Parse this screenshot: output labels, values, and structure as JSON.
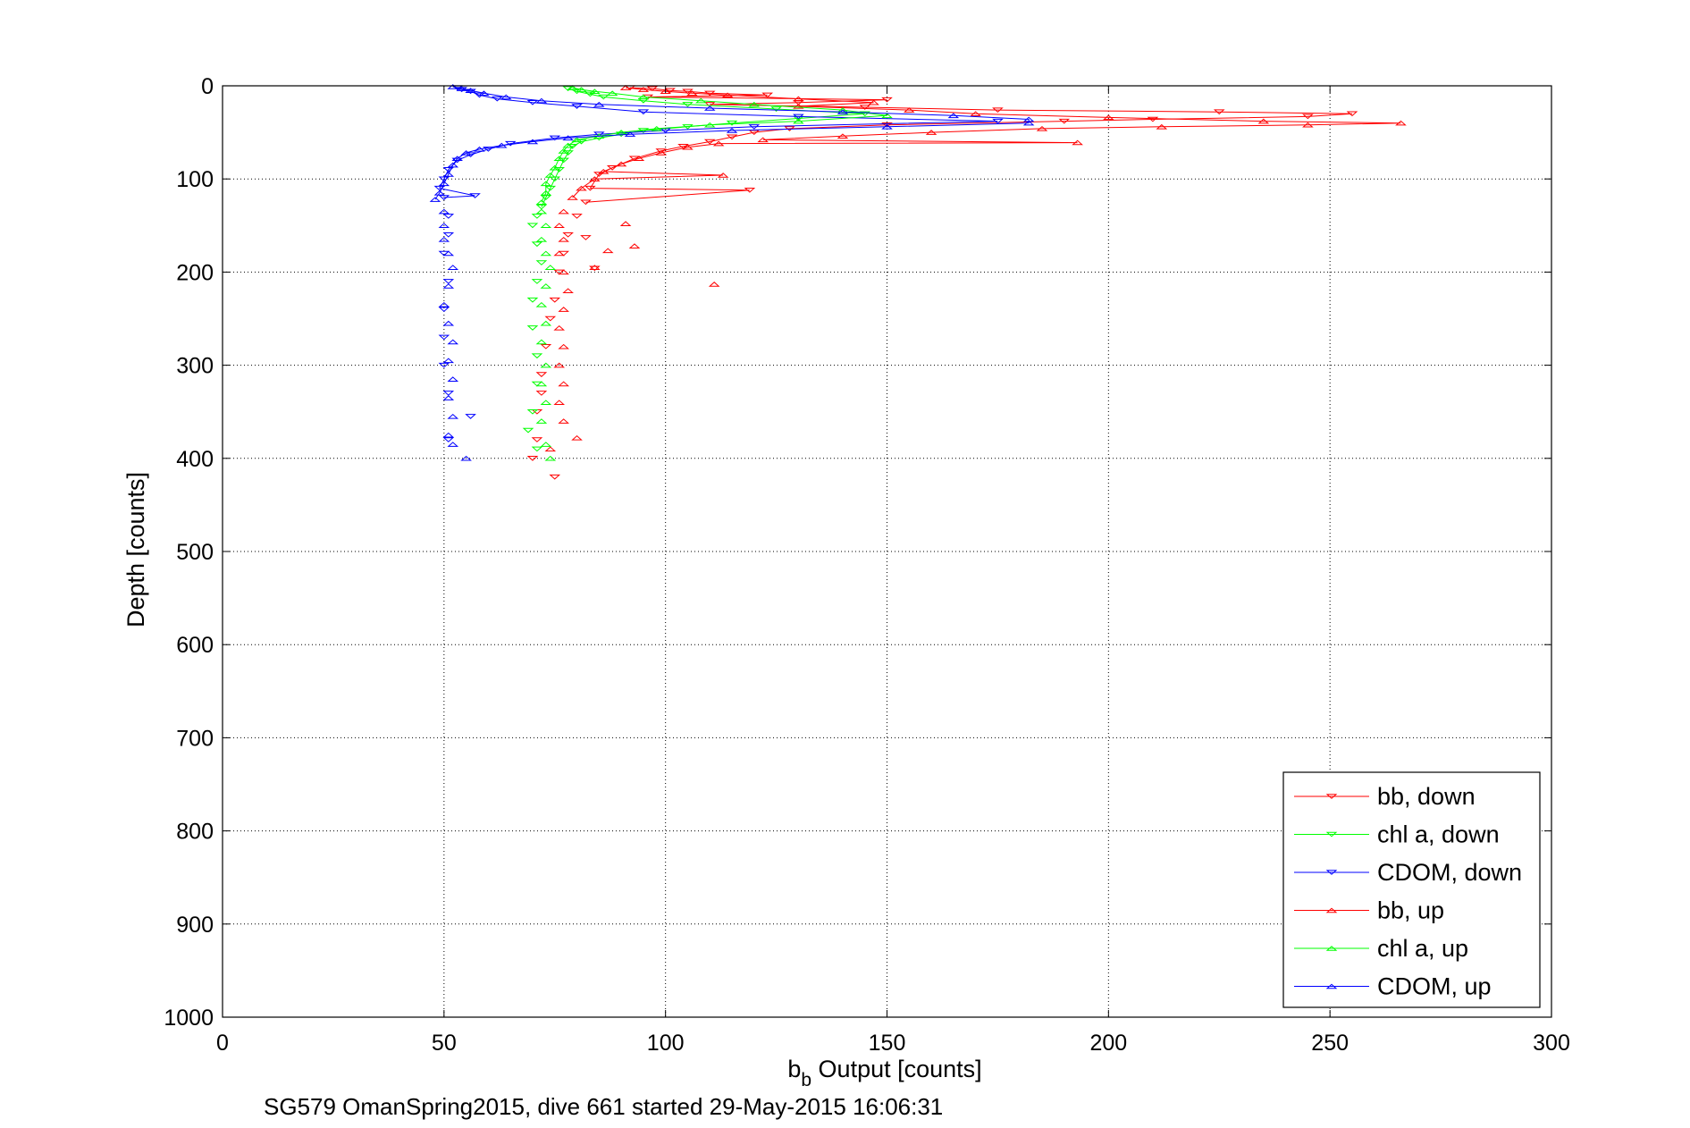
{
  "chart_data": {
    "type": "scatter",
    "title": "",
    "xlabel_main": "b",
    "xlabel_sub": "b",
    "xlabel_rest": " Output [counts]",
    "ylabel": "Depth [counts]",
    "caption": "SG579 OmanSpring2015, dive 661 started 29-May-2015 16:06:31",
    "xlim": [
      0,
      300
    ],
    "ylim": [
      0,
      1000
    ],
    "y_reversed": true,
    "grid": true,
    "legend_position": "bottom-right",
    "x_ticks": [
      "0",
      "50",
      "100",
      "150",
      "200",
      "250",
      "300"
    ],
    "y_ticks": [
      "0",
      "100",
      "200",
      "300",
      "400",
      "500",
      "600",
      "700",
      "800",
      "900",
      "1000"
    ],
    "series": [
      {
        "name": "bb, down",
        "color": "#ff0000",
        "marker": "triangle-down",
        "points": [
          [
            92,
            2
          ],
          [
            97,
            3
          ],
          [
            101,
            5
          ],
          [
            105,
            6
          ],
          [
            110,
            8
          ],
          [
            123,
            10
          ],
          [
            96,
            12
          ],
          [
            150,
            15
          ],
          [
            130,
            18
          ],
          [
            110,
            20
          ],
          [
            145,
            23
          ],
          [
            175,
            26
          ],
          [
            225,
            28
          ],
          [
            255,
            30
          ],
          [
            245,
            33
          ],
          [
            210,
            36
          ],
          [
            190,
            38
          ],
          [
            150,
            42
          ],
          [
            128,
            46
          ],
          [
            120,
            50
          ],
          [
            115,
            55
          ],
          [
            110,
            60
          ],
          [
            104,
            65
          ],
          [
            99,
            70
          ],
          [
            93,
            78
          ],
          [
            88,
            88
          ],
          [
            85,
            95
          ],
          [
            83,
            110
          ],
          [
            82,
            125
          ],
          [
            80,
            140
          ],
          [
            78,
            160
          ],
          [
            77,
            180
          ],
          [
            76,
            200
          ],
          [
            75,
            230
          ],
          [
            74,
            250
          ],
          [
            73,
            280
          ],
          [
            72,
            310
          ],
          [
            72,
            330
          ],
          [
            71,
            350
          ],
          [
            71,
            380
          ],
          [
            70,
            400
          ],
          [
            119,
            112
          ],
          [
            84,
            196
          ],
          [
            82,
            163
          ],
          [
            75,
            420
          ]
        ]
      },
      {
        "name": "chl a, down",
        "color": "#00ff00",
        "marker": "triangle-down",
        "points": [
          [
            78,
            3
          ],
          [
            80,
            6
          ],
          [
            83,
            9
          ],
          [
            86,
            12
          ],
          [
            95,
            16
          ],
          [
            105,
            20
          ],
          [
            125,
            25
          ],
          [
            145,
            30
          ],
          [
            130,
            35
          ],
          [
            115,
            40
          ],
          [
            105,
            44
          ],
          [
            95,
            48
          ],
          [
            90,
            52
          ],
          [
            85,
            56
          ],
          [
            81,
            60
          ],
          [
            79,
            65
          ],
          [
            78,
            72
          ],
          [
            77,
            80
          ],
          [
            76,
            90
          ],
          [
            75,
            100
          ],
          [
            74,
            110
          ],
          [
            73,
            120
          ],
          [
            72,
            130
          ],
          [
            71,
            140
          ],
          [
            70,
            150
          ],
          [
            71,
            170
          ],
          [
            72,
            190
          ],
          [
            71,
            210
          ],
          [
            70,
            230
          ],
          [
            70,
            260
          ],
          [
            71,
            290
          ],
          [
            71,
            320
          ],
          [
            70,
            350
          ],
          [
            69,
            370
          ],
          [
            71,
            390
          ]
        ]
      },
      {
        "name": "CDOM, down",
        "color": "#0000ff",
        "marker": "triangle-down",
        "points": [
          [
            53,
            2
          ],
          [
            54,
            4
          ],
          [
            56,
            6
          ],
          [
            58,
            10
          ],
          [
            62,
            14
          ],
          [
            70,
            18
          ],
          [
            80,
            22
          ],
          [
            95,
            28
          ],
          [
            130,
            33
          ],
          [
            175,
            38
          ],
          [
            120,
            44
          ],
          [
            100,
            48
          ],
          [
            85,
            52
          ],
          [
            75,
            56
          ],
          [
            65,
            62
          ],
          [
            60,
            68
          ],
          [
            56,
            74
          ],
          [
            53,
            80
          ],
          [
            51,
            90
          ],
          [
            50,
            100
          ],
          [
            49,
            110
          ],
          [
            50,
            120
          ],
          [
            51,
            140
          ],
          [
            51,
            160
          ],
          [
            50,
            180
          ],
          [
            51,
            210
          ],
          [
            50,
            240
          ],
          [
            50,
            270
          ],
          [
            50,
            300
          ],
          [
            51,
            330
          ],
          [
            56,
            355
          ],
          [
            51,
            380
          ],
          [
            57,
            118
          ]
        ]
      },
      {
        "name": "bb, up",
        "color": "#ff0000",
        "marker": "triangle-up",
        "points": [
          [
            91,
            2
          ],
          [
            95,
            4
          ],
          [
            100,
            6
          ],
          [
            106,
            8
          ],
          [
            114,
            10
          ],
          [
            130,
            14
          ],
          [
            147,
            18
          ],
          [
            130,
            22
          ],
          [
            155,
            26
          ],
          [
            170,
            30
          ],
          [
            200,
            34
          ],
          [
            235,
            38
          ],
          [
            266,
            40
          ],
          [
            245,
            42
          ],
          [
            212,
            44
          ],
          [
            185,
            46
          ],
          [
            160,
            50
          ],
          [
            140,
            54
          ],
          [
            122,
            58
          ],
          [
            112,
            62
          ],
          [
            105,
            66
          ],
          [
            99,
            72
          ],
          [
            94,
            78
          ],
          [
            90,
            84
          ],
          [
            86,
            92
          ],
          [
            84,
            100
          ],
          [
            81,
            110
          ],
          [
            79,
            120
          ],
          [
            77,
            135
          ],
          [
            76,
            150
          ],
          [
            77,
            165
          ],
          [
            76,
            180
          ],
          [
            77,
            200
          ],
          [
            78,
            220
          ],
          [
            77,
            240
          ],
          [
            76,
            260
          ],
          [
            77,
            280
          ],
          [
            76,
            300
          ],
          [
            77,
            320
          ],
          [
            76,
            340
          ],
          [
            77,
            360
          ],
          [
            80,
            378
          ],
          [
            74,
            390
          ],
          [
            193,
            61
          ],
          [
            113,
            96
          ],
          [
            91,
            148
          ],
          [
            84,
            195
          ],
          [
            111,
            213
          ],
          [
            93,
            172
          ],
          [
            87,
            177
          ]
        ]
      },
      {
        "name": "chl a, up",
        "color": "#00ff00",
        "marker": "triangle-up",
        "points": [
          [
            79,
            2
          ],
          [
            81,
            4
          ],
          [
            84,
            6
          ],
          [
            88,
            8
          ],
          [
            95,
            12
          ],
          [
            108,
            16
          ],
          [
            120,
            20
          ],
          [
            140,
            26
          ],
          [
            150,
            32
          ],
          [
            130,
            38
          ],
          [
            110,
            42
          ],
          [
            98,
            46
          ],
          [
            90,
            50
          ],
          [
            85,
            54
          ],
          [
            80,
            58
          ],
          [
            78,
            64
          ],
          [
            77,
            70
          ],
          [
            76,
            78
          ],
          [
            75,
            88
          ],
          [
            74,
            96
          ],
          [
            73,
            105
          ],
          [
            73,
            115
          ],
          [
            72,
            125
          ],
          [
            72,
            135
          ],
          [
            73,
            150
          ],
          [
            72,
            165
          ],
          [
            73,
            180
          ],
          [
            74,
            195
          ],
          [
            73,
            215
          ],
          [
            72,
            235
          ],
          [
            73,
            255
          ],
          [
            72,
            275
          ],
          [
            73,
            300
          ],
          [
            72,
            320
          ],
          [
            73,
            340
          ],
          [
            72,
            360
          ],
          [
            73,
            385
          ],
          [
            74,
            400
          ]
        ]
      },
      {
        "name": "CDOM, up",
        "color": "#0000ff",
        "marker": "triangle-up",
        "points": [
          [
            52,
            1
          ],
          [
            54,
            3
          ],
          [
            56,
            5
          ],
          [
            59,
            8
          ],
          [
            64,
            12
          ],
          [
            72,
            16
          ],
          [
            85,
            20
          ],
          [
            110,
            24
          ],
          [
            140,
            28
          ],
          [
            165,
            32
          ],
          [
            182,
            36
          ],
          [
            182,
            40
          ],
          [
            150,
            44
          ],
          [
            115,
            48
          ],
          [
            92,
            52
          ],
          [
            78,
            56
          ],
          [
            70,
            60
          ],
          [
            63,
            64
          ],
          [
            58,
            68
          ],
          [
            55,
            72
          ],
          [
            53,
            78
          ],
          [
            52,
            85
          ],
          [
            51,
            95
          ],
          [
            50,
            105
          ],
          [
            49,
            115
          ],
          [
            48,
            122
          ],
          [
            50,
            135
          ],
          [
            50,
            150
          ],
          [
            50,
            165
          ],
          [
            51,
            180
          ],
          [
            52,
            195
          ],
          [
            51,
            215
          ],
          [
            50,
            235
          ],
          [
            51,
            255
          ],
          [
            52,
            275
          ],
          [
            51,
            295
          ],
          [
            52,
            315
          ],
          [
            51,
            335
          ],
          [
            52,
            355
          ],
          [
            51,
            375
          ],
          [
            52,
            385
          ],
          [
            55,
            400
          ]
        ]
      }
    ]
  }
}
